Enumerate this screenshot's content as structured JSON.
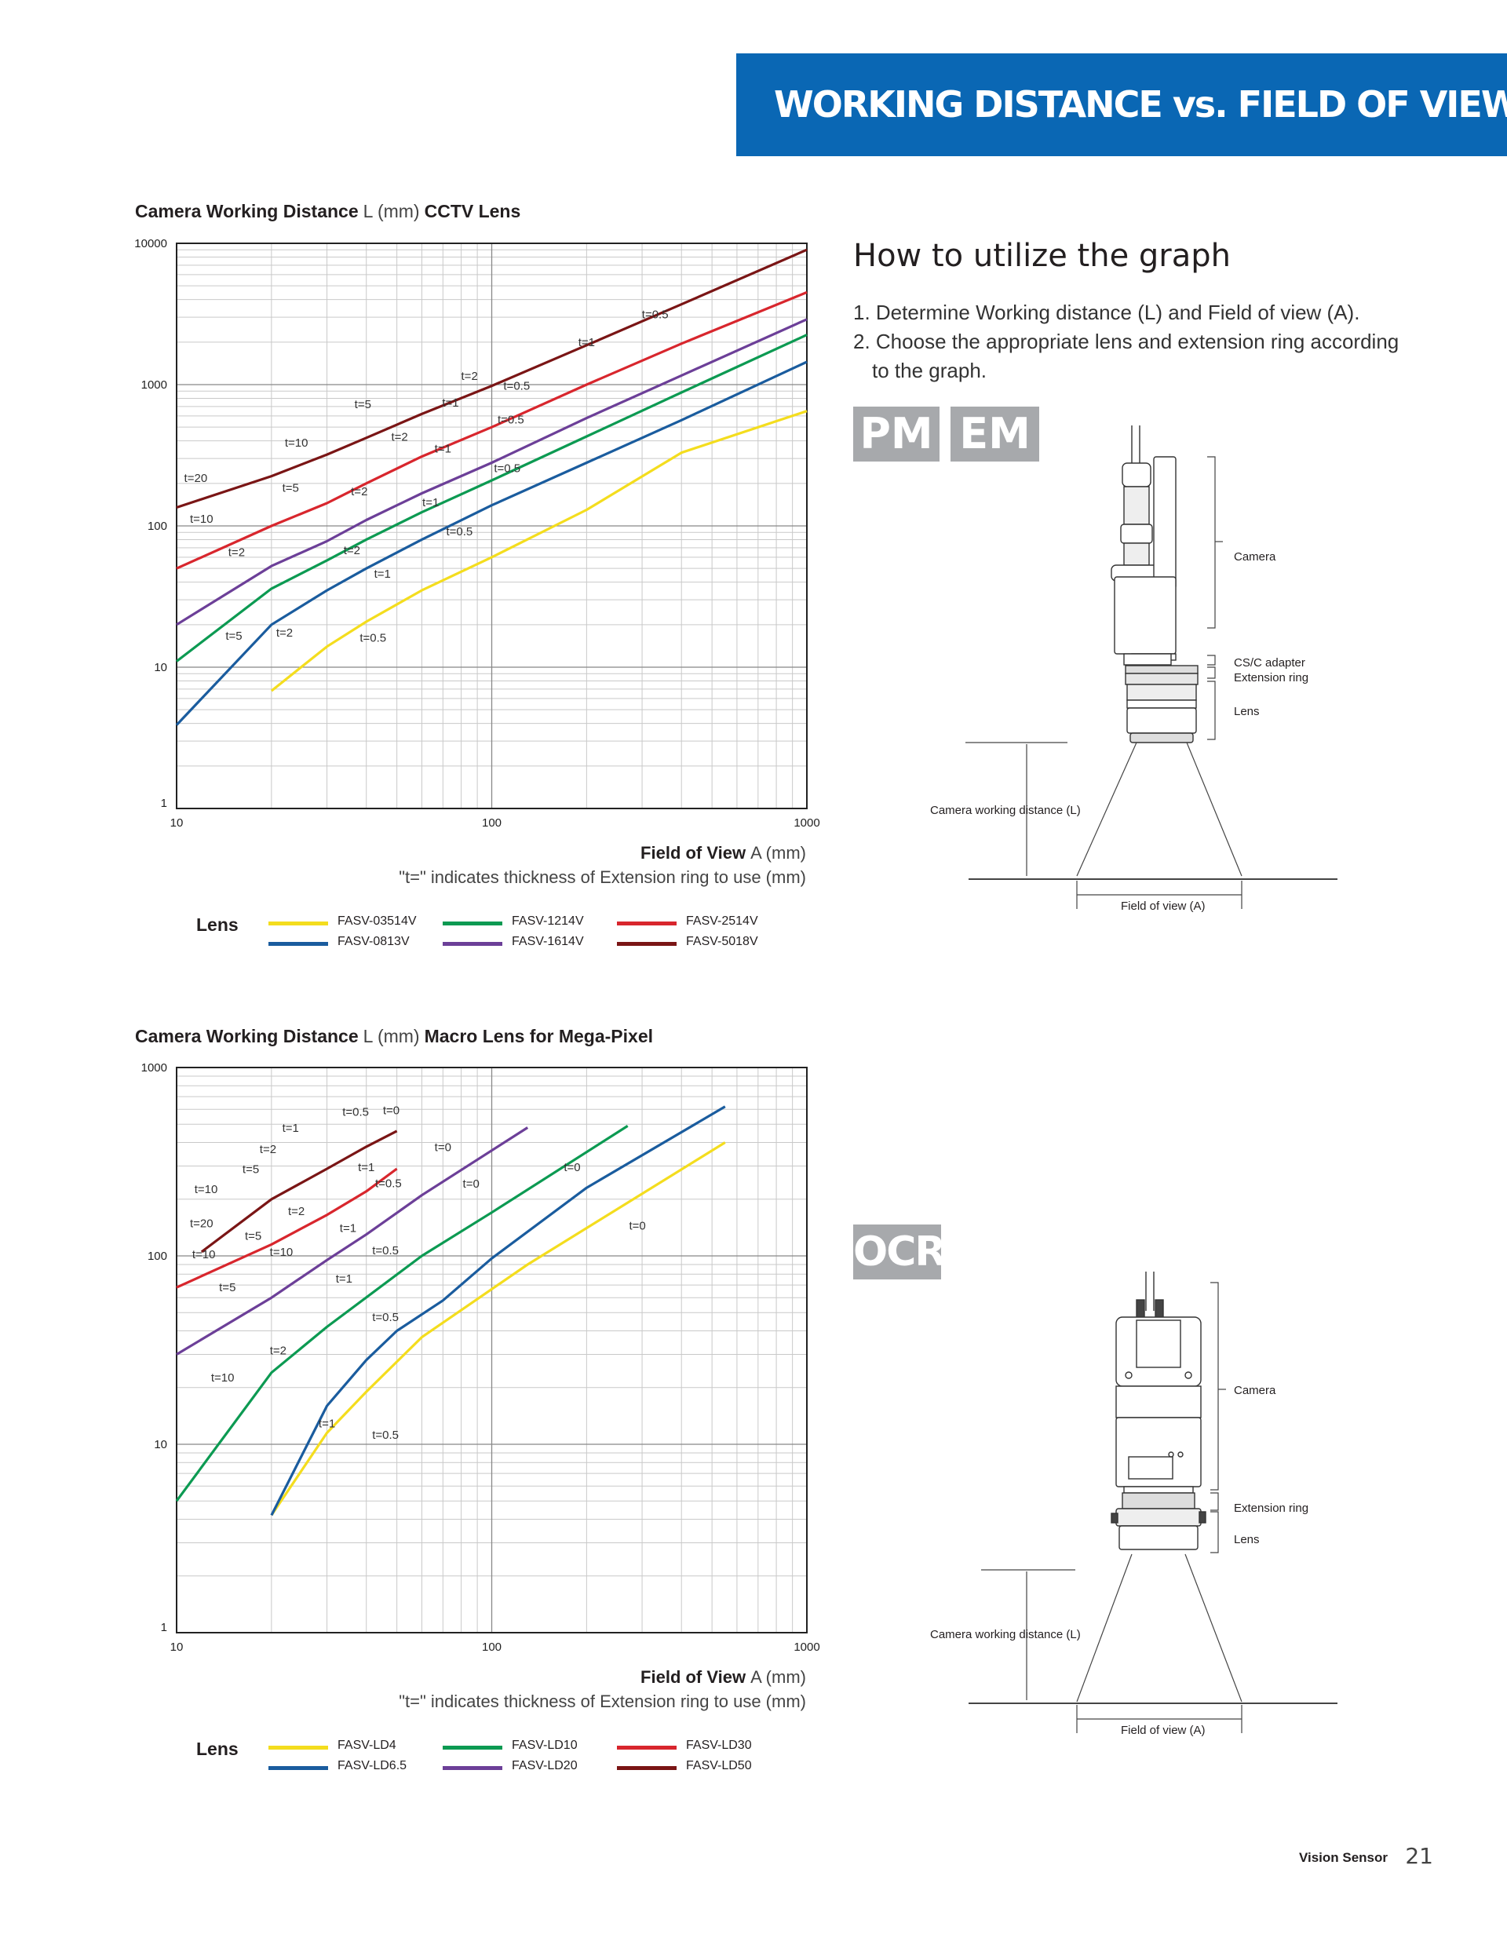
{
  "header": {
    "title": "WORKING DISTANCE vs. FIELD OF VIEW"
  },
  "chart1": {
    "heading_bold": "Camera Working Distance",
    "heading_unit": "L (mm)",
    "heading_lens": "CCTV Lens",
    "xlabel_bold": "Field of View",
    "xlabel_unit": "A (mm)",
    "note": "\"t=\" indicates thickness of Extension ring to use (mm)",
    "legend_title": "Lens"
  },
  "chart2": {
    "heading_bold": "Camera Working Distance",
    "heading_unit": "L (mm)",
    "heading_lens": "Macro Lens for Mega-Pixel",
    "xlabel_bold": "Field of View",
    "xlabel_unit": "A (mm)",
    "note": "\"t=\" indicates thickness of Extension ring to use (mm)",
    "legend_title": "Lens"
  },
  "chart_data": [
    {
      "type": "line",
      "title": "Camera Working Distance L (mm) CCTV Lens",
      "xlabel": "Field of View A (mm)",
      "ylabel": "Camera Working Distance L (mm)",
      "xscale": "log",
      "yscale": "log",
      "xlim": [
        10,
        1000
      ],
      "ylim": [
        1,
        10000
      ],
      "xticks": [
        "10",
        "100",
        "1000"
      ],
      "yticks": [
        "1",
        "10",
        "100",
        "1000",
        "10000"
      ],
      "grid": true,
      "legend_position": "bottom",
      "series": [
        {
          "name": "FASV-03514V",
          "color": "#f4dd1e",
          "points": [
            [
              20,
              6.8
            ],
            [
              30,
              14
            ],
            [
              40,
              21
            ],
            [
              60,
              35
            ],
            [
              100,
              60
            ],
            [
              200,
              130
            ],
            [
              400,
              330
            ],
            [
              1000,
              650
            ]
          ]
        },
        {
          "name": "FASV-0813V",
          "color": "#1a5c9e",
          "points": [
            [
              10,
              3.9
            ],
            [
              20,
              20
            ],
            [
              30,
              35
            ],
            [
              40,
              50
            ],
            [
              60,
              80
            ],
            [
              100,
              140
            ],
            [
              200,
              280
            ],
            [
              400,
              560
            ],
            [
              1000,
              1450
            ]
          ]
        },
        {
          "name": "FASV-1214V",
          "color": "#0c9a52",
          "points": [
            [
              10,
              11
            ],
            [
              20,
              36
            ],
            [
              30,
              57
            ],
            [
              40,
              80
            ],
            [
              60,
              125
            ],
            [
              100,
              210
            ],
            [
              200,
              430
            ],
            [
              400,
              880
            ],
            [
              1000,
              2250
            ]
          ]
        },
        {
          "name": "FASV-1614V",
          "color": "#6c3f98",
          "points": [
            [
              10,
              20
            ],
            [
              20,
              52
            ],
            [
              30,
              78
            ],
            [
              40,
              110
            ],
            [
              60,
              170
            ],
            [
              100,
              280
            ],
            [
              200,
              580
            ],
            [
              400,
              1160
            ],
            [
              1000,
              2900
            ]
          ]
        },
        {
          "name": "FASV-2514V",
          "color": "#d8262d",
          "points": [
            [
              10,
              50
            ],
            [
              20,
              100
            ],
            [
              30,
              145
            ],
            [
              40,
              200
            ],
            [
              60,
              310
            ],
            [
              100,
              500
            ],
            [
              200,
              1000
            ],
            [
              400,
              1950
            ],
            [
              1000,
              4500
            ]
          ]
        },
        {
          "name": "FASV-5018V",
          "color": "#7a1515",
          "points": [
            [
              10,
              135
            ],
            [
              20,
              225
            ],
            [
              30,
              320
            ],
            [
              40,
              420
            ],
            [
              60,
              620
            ],
            [
              100,
              980
            ],
            [
              200,
              1900
            ],
            [
              400,
              3700
            ],
            [
              1000,
              9000
            ]
          ]
        }
      ],
      "annotations": [
        {
          "label": "t=0.5",
          "x": 330,
          "y": 2950
        },
        {
          "label": "t=1",
          "x": 200,
          "y": 1870
        },
        {
          "label": "t=2",
          "x": 85,
          "y": 1080
        },
        {
          "label": "t=0.5",
          "x": 120,
          "y": 920
        },
        {
          "label": "t=1",
          "x": 74,
          "y": 700
        },
        {
          "label": "t=5",
          "x": 39,
          "y": 680
        },
        {
          "label": "t=0.5",
          "x": 115,
          "y": 530
        },
        {
          "label": "t=2",
          "x": 51,
          "y": 400
        },
        {
          "label": "t=10",
          "x": 24,
          "y": 365
        },
        {
          "label": "t=1",
          "x": 70,
          "y": 330
        },
        {
          "label": "t=20",
          "x": 11.5,
          "y": 205
        },
        {
          "label": "t=0.5",
          "x": 112,
          "y": 240
        },
        {
          "label": "t=5",
          "x": 23,
          "y": 175
        },
        {
          "label": "t=2",
          "x": 38,
          "y": 165
        },
        {
          "label": "t=1",
          "x": 64,
          "y": 138
        },
        {
          "label": "t=10",
          "x": 12,
          "y": 105
        },
        {
          "label": "t=0.5",
          "x": 79,
          "y": 86
        },
        {
          "label": "t=2",
          "x": 15.5,
          "y": 61
        },
        {
          "label": "t=2",
          "x": 36,
          "y": 63
        },
        {
          "label": "t=1",
          "x": 45,
          "y": 43
        },
        {
          "label": "t=5",
          "x": 15.2,
          "y": 15.6
        },
        {
          "label": "t=2",
          "x": 22,
          "y": 16.5
        },
        {
          "label": "t=0.5",
          "x": 42,
          "y": 15.2
        }
      ],
      "legend": [
        "FASV-03514V",
        "FASV-0813V",
        "FASV-1214V",
        "FASV-1614V",
        "FASV-2514V",
        "FASV-5018V"
      ]
    },
    {
      "type": "line",
      "title": "Camera Working Distance L (mm) Macro Lens for Mega-Pixel",
      "xlabel": "Field of View A (mm)",
      "ylabel": "Camera Working Distance L (mm)",
      "xscale": "log",
      "yscale": "log",
      "xlim": [
        10,
        1000
      ],
      "ylim": [
        1,
        1000
      ],
      "xticks": [
        "10",
        "100",
        "1000"
      ],
      "yticks": [
        "1",
        "10",
        "100",
        "1000"
      ],
      "grid": true,
      "legend_position": "bottom",
      "series": [
        {
          "name": "FASV-LD4",
          "color": "#f4dd1e",
          "points": [
            [
              20,
              4.2
            ],
            [
              30,
              11.5
            ],
            [
              40,
              19
            ],
            [
              60,
              37
            ],
            [
              130,
              90
            ],
            [
              550,
              400
            ]
          ]
        },
        {
          "name": "FASV-LD6.5",
          "color": "#1a5c9e",
          "points": [
            [
              20,
              4.2
            ],
            [
              30,
              16
            ],
            [
              40,
              28
            ],
            [
              50,
              40
            ],
            [
              70,
              58
            ],
            [
              100,
              97
            ],
            [
              200,
              230
            ],
            [
              550,
              620
            ]
          ]
        },
        {
          "name": "FASV-LD10",
          "color": "#0c9a52",
          "points": [
            [
              10,
              5
            ],
            [
              20,
              24
            ],
            [
              30,
              42
            ],
            [
              60,
              100
            ],
            [
              100,
              170
            ],
            [
              270,
              490
            ]
          ]
        },
        {
          "name": "FASV-LD20",
          "color": "#6c3f98",
          "points": [
            [
              10,
              30
            ],
            [
              20,
              60
            ],
            [
              30,
              95
            ],
            [
              40,
              130
            ],
            [
              60,
              210
            ],
            [
              130,
              480
            ]
          ]
        },
        {
          "name": "FASV-LD30",
          "color": "#d8262d",
          "points": [
            [
              10,
              68
            ],
            [
              20,
              115
            ],
            [
              30,
              165
            ],
            [
              40,
              220
            ],
            [
              50,
              290
            ]
          ]
        },
        {
          "name": "FASV-LD50",
          "color": "#7a1515",
          "points": [
            [
              12,
              105
            ],
            [
              20,
              200
            ],
            [
              30,
              290
            ],
            [
              40,
              380
            ],
            [
              50,
              460
            ]
          ]
        }
      ],
      "annotations": [
        {
          "label": "t=0.5",
          "x": 37,
          "y": 555
        },
        {
          "label": "t=0",
          "x": 48,
          "y": 565
        },
        {
          "label": "t=1",
          "x": 23,
          "y": 455
        },
        {
          "label": "t=2",
          "x": 19.5,
          "y": 352
        },
        {
          "label": "t=0",
          "x": 70,
          "y": 360
        },
        {
          "label": "t=5",
          "x": 17.2,
          "y": 275
        },
        {
          "label": "t=1",
          "x": 40,
          "y": 282
        },
        {
          "label": "t=0.5",
          "x": 47,
          "y": 232
        },
        {
          "label": "t=0",
          "x": 86,
          "y": 230
        },
        {
          "label": "t=0",
          "x": 180,
          "y": 282
        },
        {
          "label": "t=10",
          "x": 12.4,
          "y": 215
        },
        {
          "label": "t=2",
          "x": 24,
          "y": 165
        },
        {
          "label": "t=1",
          "x": 35,
          "y": 134
        },
        {
          "label": "t=0",
          "x": 290,
          "y": 138
        },
        {
          "label": "t=20",
          "x": 12,
          "y": 142
        },
        {
          "label": "t=5",
          "x": 17.5,
          "y": 122
        },
        {
          "label": "t=0.5",
          "x": 46,
          "y": 102
        },
        {
          "label": "t=10",
          "x": 21.5,
          "y": 100
        },
        {
          "label": "t=10",
          "x": 12.2,
          "y": 97
        },
        {
          "label": "t=5",
          "x": 14.5,
          "y": 65
        },
        {
          "label": "t=1",
          "x": 34,
          "y": 72
        },
        {
          "label": "t=0.5",
          "x": 46,
          "y": 45
        },
        {
          "label": "t=2",
          "x": 21,
          "y": 30
        },
        {
          "label": "t=10",
          "x": 14,
          "y": 21.5
        },
        {
          "label": "t=1",
          "x": 30,
          "y": 12.3
        },
        {
          "label": "t=0.5",
          "x": 46,
          "y": 10.7
        }
      ],
      "legend": [
        "FASV-LD4",
        "FASV-LD6.5",
        "FASV-LD10",
        "FASV-LD20",
        "FASV-LD30",
        "FASV-LD50"
      ]
    }
  ],
  "howto": {
    "title": "How to utilize the graph",
    "steps": [
      "1. Determine Working distance (L) and Field of view (A).",
      "2. Choose the appropriate lens and extension ring according to the graph."
    ]
  },
  "badges": {
    "pm": "PM",
    "em": "EM",
    "ocr": "OCR"
  },
  "diagram1": {
    "camera": "Camera",
    "adapter": "CS/C adapter",
    "extension": "Extension ring",
    "lens": "Lens",
    "wd": "Camera working distance (L)",
    "fov": "Field of view (A)"
  },
  "diagram2": {
    "camera": "Camera",
    "extension": "Extension ring",
    "lens": "Lens",
    "wd": "Camera working distance (L)",
    "fov": "Field of view (A)"
  },
  "footer": {
    "brand": "Vision Sensor",
    "page": "21"
  }
}
